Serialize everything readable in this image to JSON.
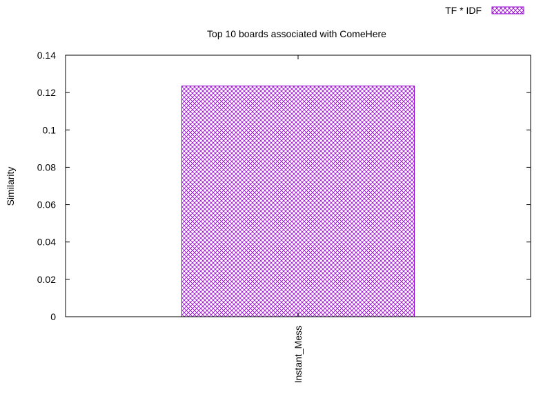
{
  "chart_data": {
    "type": "bar",
    "title": "Top 10 boards associated with ComeHere",
    "xlabel": "",
    "ylabel": "Similarity",
    "categories": [
      "Instant_Mess"
    ],
    "series": [
      {
        "name": "TF * IDF",
        "values": [
          0.1235
        ]
      }
    ],
    "ylim": [
      0,
      0.14
    ],
    "yticks": [
      "0",
      "0.02",
      "0.04",
      "0.06",
      "0.08",
      "0.1",
      "0.12",
      "0.14"
    ],
    "grid": false,
    "legend_position": "top-right",
    "bar_color": "#9400d3",
    "bar_pattern": "crosshatch"
  }
}
